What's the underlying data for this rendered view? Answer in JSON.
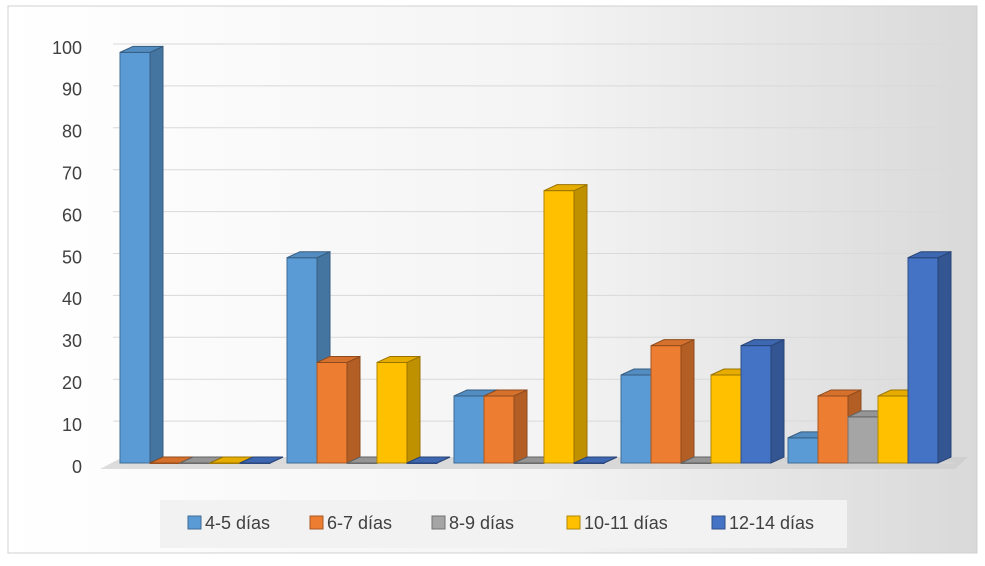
{
  "chart_data": {
    "type": "bar3d",
    "categories": [
      null,
      null,
      null,
      null,
      null
    ],
    "series": [
      {
        "name": "4-5 días",
        "color": "#5b9bd5",
        "values": [
          98,
          49,
          16,
          21,
          6
        ]
      },
      {
        "name": "6-7 días",
        "color": "#ed7d31",
        "values": [
          0,
          24,
          16,
          28,
          16
        ]
      },
      {
        "name": "8-9 días",
        "color": "#a5a5a5",
        "values": [
          0,
          0,
          0,
          0,
          11
        ]
      },
      {
        "name": "10-11 días",
        "color": "#ffc000",
        "values": [
          0,
          24,
          65,
          21,
          16
        ]
      },
      {
        "name": "12-14 días",
        "color": "#4472c4",
        "values": [
          0,
          0,
          0,
          28,
          49
        ]
      }
    ],
    "ylim": [
      0,
      100
    ],
    "yticks": [
      0,
      10,
      20,
      30,
      40,
      50,
      60,
      70,
      80,
      90,
      100
    ],
    "grid": true,
    "legend": "bottom"
  }
}
